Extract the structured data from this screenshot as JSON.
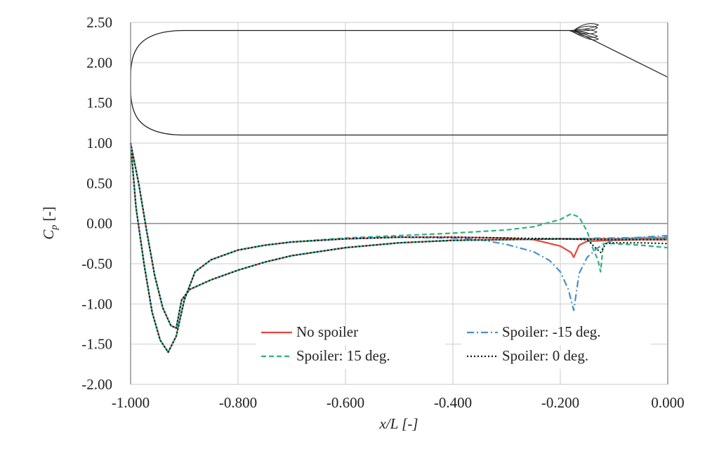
{
  "chart_data": {
    "type": "line",
    "title": "",
    "xlabel": "x/L [-]",
    "ylabel_main": "C",
    "ylabel_sub": "p",
    "ylabel_unit": " [-]",
    "xlim": [
      -1.0,
      0.0
    ],
    "ylim": [
      -2.0,
      2.5
    ],
    "xticks": [
      "-1.000",
      "-0.800",
      "-0.600",
      "-0.400",
      "-0.200",
      "0.000"
    ],
    "xtick_values": [
      -1.0,
      -0.8,
      -0.6,
      -0.4,
      -0.2,
      0.0
    ],
    "yticks": [
      "2.50",
      "2.00",
      "1.50",
      "1.00",
      "0.50",
      "0.00",
      "-0.50",
      "-1.00",
      "-1.50",
      "-2.00"
    ],
    "ytick_values": [
      2.5,
      2.0,
      1.5,
      1.0,
      0.5,
      0.0,
      -0.5,
      -1.0,
      -1.5,
      -2.0
    ],
    "grid": true,
    "legend_placement": "bottom-right",
    "series": [
      {
        "name": "No spoiler",
        "color": "#e8453c",
        "dash": "solid",
        "branches": [
          {
            "x": [
              -1.0,
              -0.99,
              -0.975,
              -0.96,
              -0.945,
              -0.93,
              -0.915,
              -0.9,
              -0.88,
              -0.85,
              -0.8,
              -0.75,
              -0.7,
              -0.6,
              -0.5,
              -0.4,
              -0.3,
              -0.25,
              -0.2,
              -0.18,
              -0.175,
              -0.165,
              -0.15,
              -0.1,
              -0.05,
              0.0
            ],
            "y": [
              1.0,
              0.2,
              -0.5,
              -1.1,
              -1.45,
              -1.6,
              -1.4,
              -0.95,
              -0.6,
              -0.45,
              -0.33,
              -0.27,
              -0.23,
              -0.19,
              -0.17,
              -0.17,
              -0.18,
              -0.2,
              -0.28,
              -0.36,
              -0.42,
              -0.27,
              -0.22,
              -0.21,
              -0.2,
              -0.2
            ]
          },
          {
            "x": [
              -1.0,
              -0.985,
              -0.97,
              -0.955,
              -0.94,
              -0.925,
              -0.915,
              -0.905,
              -0.89,
              -0.85,
              -0.8,
              -0.75,
              -0.7,
              -0.6,
              -0.5,
              -0.4,
              -0.3,
              -0.2,
              -0.1,
              0.0
            ],
            "y": [
              1.0,
              0.5,
              -0.1,
              -0.65,
              -1.05,
              -1.27,
              -1.3,
              -0.95,
              -0.82,
              -0.7,
              -0.58,
              -0.48,
              -0.4,
              -0.3,
              -0.24,
              -0.21,
              -0.2,
              -0.19,
              -0.19,
              -0.18
            ]
          }
        ]
      },
      {
        "name": "Spoiler: -15 deg.",
        "color": "#4a90c8",
        "dash": "dashdot",
        "branches": [
          {
            "x": [
              -1.0,
              -0.99,
              -0.975,
              -0.96,
              -0.945,
              -0.93,
              -0.915,
              -0.9,
              -0.88,
              -0.85,
              -0.8,
              -0.75,
              -0.7,
              -0.6,
              -0.5,
              -0.4,
              -0.35,
              -0.3,
              -0.25,
              -0.22,
              -0.2,
              -0.185,
              -0.175,
              -0.165,
              -0.15,
              -0.13,
              -0.1,
              -0.05,
              0.0
            ],
            "y": [
              1.0,
              0.2,
              -0.5,
              -1.1,
              -1.45,
              -1.6,
              -1.4,
              -0.95,
              -0.6,
              -0.45,
              -0.33,
              -0.27,
              -0.23,
              -0.19,
              -0.17,
              -0.18,
              -0.2,
              -0.26,
              -0.35,
              -0.46,
              -0.6,
              -0.82,
              -1.08,
              -0.62,
              -0.42,
              -0.3,
              -0.2,
              -0.17,
              -0.15
            ]
          },
          {
            "x": [
              -1.0,
              -0.985,
              -0.97,
              -0.955,
              -0.94,
              -0.925,
              -0.915,
              -0.905,
              -0.89,
              -0.85,
              -0.8,
              -0.75,
              -0.7,
              -0.6,
              -0.5,
              -0.4,
              -0.3,
              -0.2,
              -0.1,
              0.0
            ],
            "y": [
              1.0,
              0.5,
              -0.1,
              -0.65,
              -1.05,
              -1.27,
              -1.3,
              -0.95,
              -0.82,
              -0.7,
              -0.58,
              -0.48,
              -0.4,
              -0.3,
              -0.24,
              -0.21,
              -0.2,
              -0.19,
              -0.18,
              -0.17
            ]
          }
        ]
      },
      {
        "name": "Spoiler: 15 deg.",
        "color": "#2db37a",
        "dash": "dashed",
        "branches": [
          {
            "x": [
              -1.0,
              -0.99,
              -0.975,
              -0.96,
              -0.945,
              -0.93,
              -0.915,
              -0.9,
              -0.88,
              -0.85,
              -0.8,
              -0.75,
              -0.7,
              -0.6,
              -0.5,
              -0.4,
              -0.3,
              -0.25,
              -0.2,
              -0.18,
              -0.165,
              -0.15,
              -0.14,
              -0.13,
              -0.125,
              -0.12,
              -0.1,
              -0.05,
              0.0
            ],
            "y": [
              1.0,
              0.2,
              -0.5,
              -1.1,
              -1.45,
              -1.6,
              -1.4,
              -0.95,
              -0.6,
              -0.45,
              -0.33,
              -0.27,
              -0.23,
              -0.18,
              -0.15,
              -0.12,
              -0.08,
              -0.04,
              0.05,
              0.12,
              0.08,
              -0.1,
              -0.3,
              -0.45,
              -0.6,
              -0.25,
              -0.25,
              -0.27,
              -0.3
            ]
          },
          {
            "x": [
              -1.0,
              -0.985,
              -0.97,
              -0.955,
              -0.94,
              -0.925,
              -0.915,
              -0.905,
              -0.89,
              -0.85,
              -0.8,
              -0.75,
              -0.7,
              -0.6,
              -0.5,
              -0.4,
              -0.3,
              -0.2,
              -0.1,
              0.0
            ],
            "y": [
              1.0,
              0.5,
              -0.1,
              -0.65,
              -1.05,
              -1.27,
              -1.3,
              -0.95,
              -0.82,
              -0.7,
              -0.58,
              -0.48,
              -0.4,
              -0.3,
              -0.24,
              -0.21,
              -0.2,
              -0.19,
              -0.2,
              -0.19
            ]
          }
        ]
      },
      {
        "name": "Spoiler: 0 deg.",
        "color": "#111111",
        "dash": "dotted",
        "branches": [
          {
            "x": [
              -1.0,
              -0.99,
              -0.975,
              -0.96,
              -0.945,
              -0.93,
              -0.915,
              -0.9,
              -0.88,
              -0.85,
              -0.8,
              -0.75,
              -0.7,
              -0.6,
              -0.5,
              -0.4,
              -0.3,
              -0.2,
              -0.15,
              -0.135,
              -0.125,
              -0.115,
              -0.1,
              -0.05,
              0.0
            ],
            "y": [
              1.0,
              0.2,
              -0.5,
              -1.1,
              -1.45,
              -1.6,
              -1.4,
              -0.95,
              -0.6,
              -0.45,
              -0.33,
              -0.27,
              -0.23,
              -0.19,
              -0.17,
              -0.17,
              -0.18,
              -0.19,
              -0.2,
              -0.3,
              -0.36,
              -0.25,
              -0.24,
              -0.24,
              -0.25
            ]
          },
          {
            "x": [
              -1.0,
              -0.985,
              -0.97,
              -0.955,
              -0.94,
              -0.925,
              -0.915,
              -0.905,
              -0.89,
              -0.85,
              -0.8,
              -0.75,
              -0.7,
              -0.6,
              -0.5,
              -0.4,
              -0.3,
              -0.2,
              -0.1,
              0.0
            ],
            "y": [
              1.0,
              0.5,
              -0.1,
              -0.65,
              -1.05,
              -1.27,
              -1.3,
              -0.95,
              -0.82,
              -0.7,
              -0.58,
              -0.48,
              -0.4,
              -0.3,
              -0.24,
              -0.21,
              -0.2,
              -0.19,
              -0.2,
              -0.2
            ]
          }
        ]
      }
    ],
    "legend_order": [
      0,
      1,
      2,
      3
    ],
    "body_outline": {
      "color": "#222222",
      "top_y": 2.4,
      "bottom_y": 1.1,
      "nose_x": -1.0,
      "nose_round_end_x": -0.9,
      "spoiler_hinge_x": -0.175,
      "tail_end_y": 1.82
    }
  }
}
